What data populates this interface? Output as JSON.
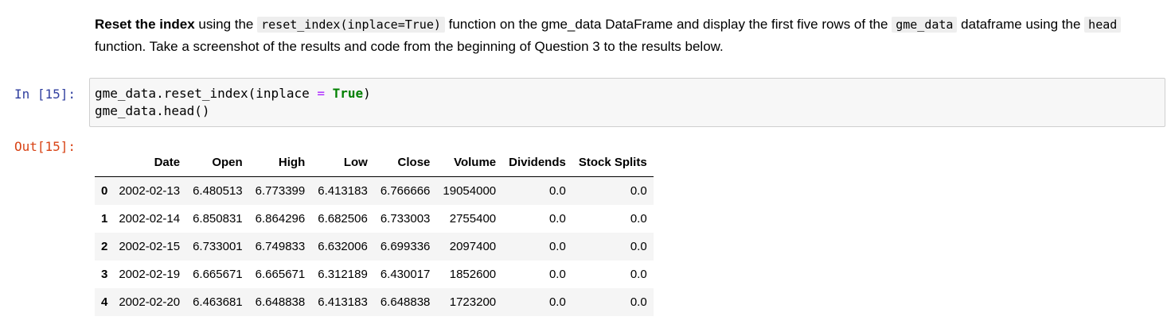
{
  "markdown": {
    "bold_lead": "Reset the index",
    "t1": " using the ",
    "code1": "reset_index(inplace=True)",
    "t2": " function on the gme_data DataFrame and display the first five rows of the ",
    "code2": "gme_data",
    "t3": " dataframe using the ",
    "code3": "head",
    "t4": " function. Take a screenshot of the results and code from the beginning of Question 3 to the results below."
  },
  "input_prompt": "In [15]:",
  "output_prompt": "Out[15]:",
  "code": {
    "line1_a": "gme_data.reset_index(inplace ",
    "line1_op": "=",
    "line1_sp": " ",
    "line1_kw": "True",
    "line1_end": ")",
    "line2": "gme_data.head()"
  },
  "table": {
    "columns": [
      "",
      "Date",
      "Open",
      "High",
      "Low",
      "Close",
      "Volume",
      "Dividends",
      "Stock Splits"
    ],
    "rows": [
      [
        "0",
        "2002-02-13",
        "6.480513",
        "6.773399",
        "6.413183",
        "6.766666",
        "19054000",
        "0.0",
        "0.0"
      ],
      [
        "1",
        "2002-02-14",
        "6.850831",
        "6.864296",
        "6.682506",
        "6.733003",
        "2755400",
        "0.0",
        "0.0"
      ],
      [
        "2",
        "2002-02-15",
        "6.733001",
        "6.749833",
        "6.632006",
        "6.699336",
        "2097400",
        "0.0",
        "0.0"
      ],
      [
        "3",
        "2002-02-19",
        "6.665671",
        "6.665671",
        "6.312189",
        "6.430017",
        "1852600",
        "0.0",
        "0.0"
      ],
      [
        "4",
        "2002-02-20",
        "6.463681",
        "6.648838",
        "6.413183",
        "6.648838",
        "1723200",
        "0.0",
        "0.0"
      ]
    ]
  },
  "colors": {
    "in_prompt": "#303f9f",
    "out_prompt": "#d84315",
    "keyword": "#008000",
    "operator": "#aa22ff"
  }
}
